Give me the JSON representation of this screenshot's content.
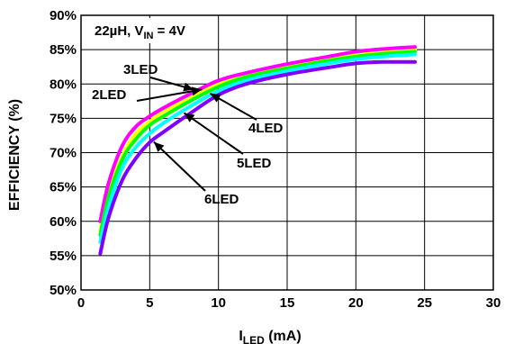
{
  "chart_data": {
    "type": "line",
    "annotation_main": "22µH, V",
    "annotation_sub": "IN",
    "annotation_tail": " = 4V",
    "xlabel_main": "I",
    "xlabel_sub": "LED",
    "xlabel_tail": " (mA)",
    "ylabel": "EFFICIENCY (%)",
    "xlim": [
      0,
      30
    ],
    "ylim": [
      50,
      90
    ],
    "x_ticks": [
      0,
      5,
      10,
      15,
      20,
      25,
      30
    ],
    "x_tick_labels": [
      "0",
      "5",
      "10",
      "15",
      "20",
      "25",
      "30"
    ],
    "y_ticks": [
      50,
      55,
      60,
      65,
      70,
      75,
      80,
      85,
      90
    ],
    "y_tick_labels": [
      "50%",
      "55%",
      "60%",
      "65%",
      "70%",
      "75%",
      "80%",
      "85%",
      "90%"
    ],
    "grid": true,
    "series": [
      {
        "name": "2LED",
        "color": "#ffff00",
        "x": [
          1.4,
          2,
          3,
          4,
          5,
          6,
          8,
          10,
          12,
          15,
          18,
          20,
          22,
          24.3
        ],
        "y": [
          58.5,
          64,
          69.5,
          72.8,
          74.5,
          76,
          78,
          80,
          81.2,
          82.6,
          83.7,
          84.3,
          84.7,
          85
        ]
      },
      {
        "name": "3LED",
        "color": "#ff00ff",
        "x": [
          1.4,
          2,
          3,
          4,
          5,
          6,
          8,
          10,
          12,
          15,
          18,
          20,
          22,
          24.3
        ],
        "y": [
          60,
          65.5,
          71,
          73.8,
          75.3,
          76.5,
          78.6,
          80.5,
          81.6,
          82.9,
          84,
          84.7,
          85.1,
          85.4
        ]
      },
      {
        "name": "4LED",
        "color": "#00ff00",
        "x": [
          1.4,
          2,
          3,
          4,
          5,
          6,
          8,
          10,
          12,
          15,
          18,
          20,
          22,
          24.3
        ],
        "y": [
          58,
          63.5,
          69,
          72,
          74,
          75.3,
          77.6,
          79.6,
          81,
          82.3,
          83.4,
          84,
          84.4,
          84.7
        ]
      },
      {
        "name": "5LED",
        "color": "#00ffff",
        "x": [
          1.4,
          2,
          3,
          4,
          5,
          6,
          8,
          10,
          12,
          15,
          18,
          20,
          22,
          24.3
        ],
        "y": [
          57,
          62,
          67.8,
          70.8,
          72.8,
          74.3,
          76.8,
          79,
          80.5,
          81.9,
          83,
          83.6,
          84,
          84.3
        ]
      },
      {
        "name": "6LED",
        "color": "#7f00ff",
        "x": [
          1.4,
          2,
          3,
          4,
          5,
          6,
          8,
          10,
          12,
          15,
          18,
          20,
          22,
          24.3
        ],
        "y": [
          55.3,
          60.5,
          66,
          69.2,
          71.5,
          73,
          75.8,
          78.4,
          80,
          81.4,
          82.4,
          83,
          83.2,
          83.2
        ]
      }
    ],
    "labels": [
      {
        "text": "3LED",
        "series": "3LED"
      },
      {
        "text": "2LED",
        "series": "2LED"
      },
      {
        "text": "4LED",
        "series": "4LED"
      },
      {
        "text": "5LED",
        "series": "5LED"
      },
      {
        "text": "6LED",
        "series": "6LED"
      }
    ]
  }
}
